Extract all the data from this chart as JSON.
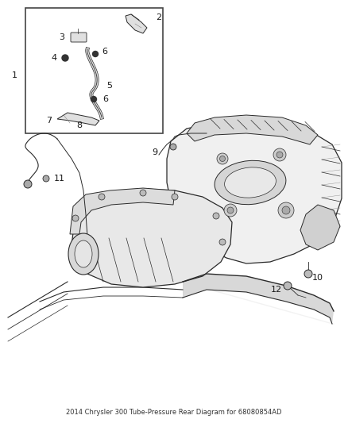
{
  "title": "2014 Chrysler 300 Tube-Pressure Rear Diagram for 68080854AD",
  "background_color": "#ffffff",
  "fig_width": 4.38,
  "fig_height": 5.33,
  "dpi": 100,
  "label_fontsize": 7.5,
  "label_color": "#1a1a1a",
  "line_color": "#2a2a2a",
  "gray_fill": "#c8c8c8",
  "light_gray": "#e0e0e0",
  "mid_gray": "#888888"
}
